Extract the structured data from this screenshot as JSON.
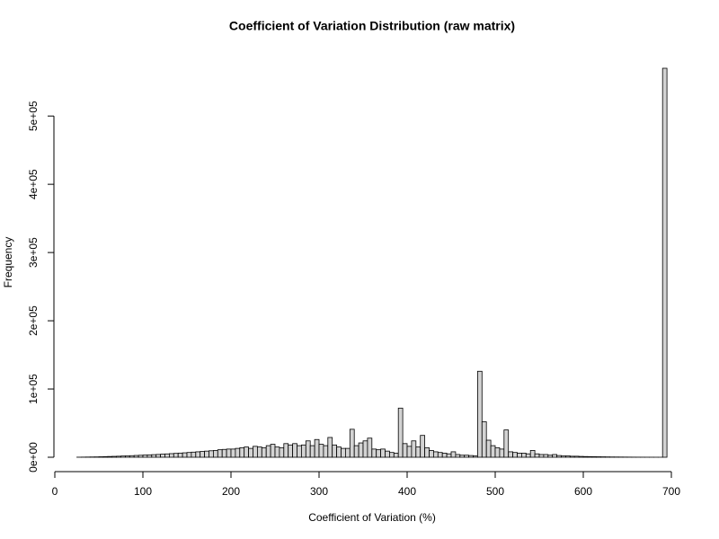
{
  "chart_data": {
    "type": "histogram",
    "title": "Coefficient of Variation Distribution (raw matrix)",
    "x_label": "Coefficient of Variation (%)",
    "y_label": "Frequency",
    "color": "#d3d3d3",
    "bins": [
      25,
      30,
      35,
      40,
      45,
      50,
      55,
      60,
      65,
      70,
      75,
      80,
      85,
      90,
      95,
      100,
      105,
      110,
      115,
      120,
      125,
      130,
      135,
      140,
      145,
      150,
      155,
      160,
      165,
      170,
      175,
      180,
      185,
      190,
      195,
      200,
      205,
      210,
      215,
      220,
      225,
      230,
      235,
      240,
      245,
      250,
      255,
      260,
      265,
      270,
      275,
      280,
      285,
      290,
      295,
      300,
      305,
      310,
      315,
      320,
      325,
      330,
      335,
      340,
      345,
      350,
      355,
      360,
      365,
      370,
      375,
      380,
      385,
      390,
      395,
      400,
      405,
      410,
      415,
      420,
      425,
      430,
      435,
      440,
      445,
      450,
      455,
      460,
      465,
      470,
      475,
      480,
      485,
      490,
      495,
      500,
      505,
      510,
      515,
      520,
      525,
      530,
      535,
      540,
      545,
      550,
      555,
      560,
      565,
      570,
      575,
      580,
      585,
      590,
      595,
      600,
      605,
      610,
      615,
      620,
      625,
      630,
      635,
      640,
      645,
      650,
      655,
      660,
      665,
      670,
      675,
      680,
      685,
      690,
      695
    ],
    "values": [
      100,
      200,
      300,
      400,
      500,
      700,
      900,
      1100,
      1300,
      1500,
      1800,
      2000,
      2300,
      2600,
      2900,
      3200,
      3500,
      3800,
      4100,
      4500,
      4900,
      5300,
      5700,
      6100,
      6500,
      7000,
      7500,
      8000,
      8500,
      9000,
      9500,
      10000,
      11000,
      11500,
      12000,
      12000,
      13000,
      14000,
      15000,
      13000,
      16000,
      15000,
      14000,
      17000,
      19000,
      15000,
      14000,
      20000,
      18000,
      20000,
      17000,
      18000,
      24000,
      17000,
      26000,
      19000,
      17000,
      29000,
      18000,
      15000,
      13000,
      13000,
      41000,
      17000,
      21000,
      24000,
      28000,
      12000,
      11000,
      12000,
      9000,
      7000,
      6000,
      72000,
      20000,
      16000,
      24000,
      15000,
      32000,
      14000,
      10000,
      8000,
      7000,
      6000,
      5000,
      8000,
      4000,
      3000,
      3000,
      2500,
      2000,
      126000,
      52000,
      25000,
      17000,
      14000,
      12000,
      40000,
      8000,
      7000,
      6000,
      6000,
      5000,
      10000,
      5000,
      4000,
      4000,
      3000,
      4000,
      2500,
      2000,
      2000,
      1500,
      1500,
      1200,
      1000,
      900,
      800,
      700,
      600,
      500,
      400,
      350,
      300,
      250,
      200,
      150,
      120,
      100,
      80,
      60,
      40,
      20,
      570000
    ],
    "xlim": [
      0,
      700
    ],
    "ylim": [
      0,
      570000
    ],
    "xticks": [
      0,
      100,
      200,
      300,
      400,
      500,
      600,
      700
    ],
    "yticks": [
      {
        "value": 0,
        "label": "0e+00"
      },
      {
        "value": 100000,
        "label": "1e+05"
      },
      {
        "value": 200000,
        "label": "2e+05"
      },
      {
        "value": 300000,
        "label": "3e+05"
      },
      {
        "value": 400000,
        "label": "4e+05"
      },
      {
        "value": 500000,
        "label": "5e+05"
      }
    ]
  }
}
